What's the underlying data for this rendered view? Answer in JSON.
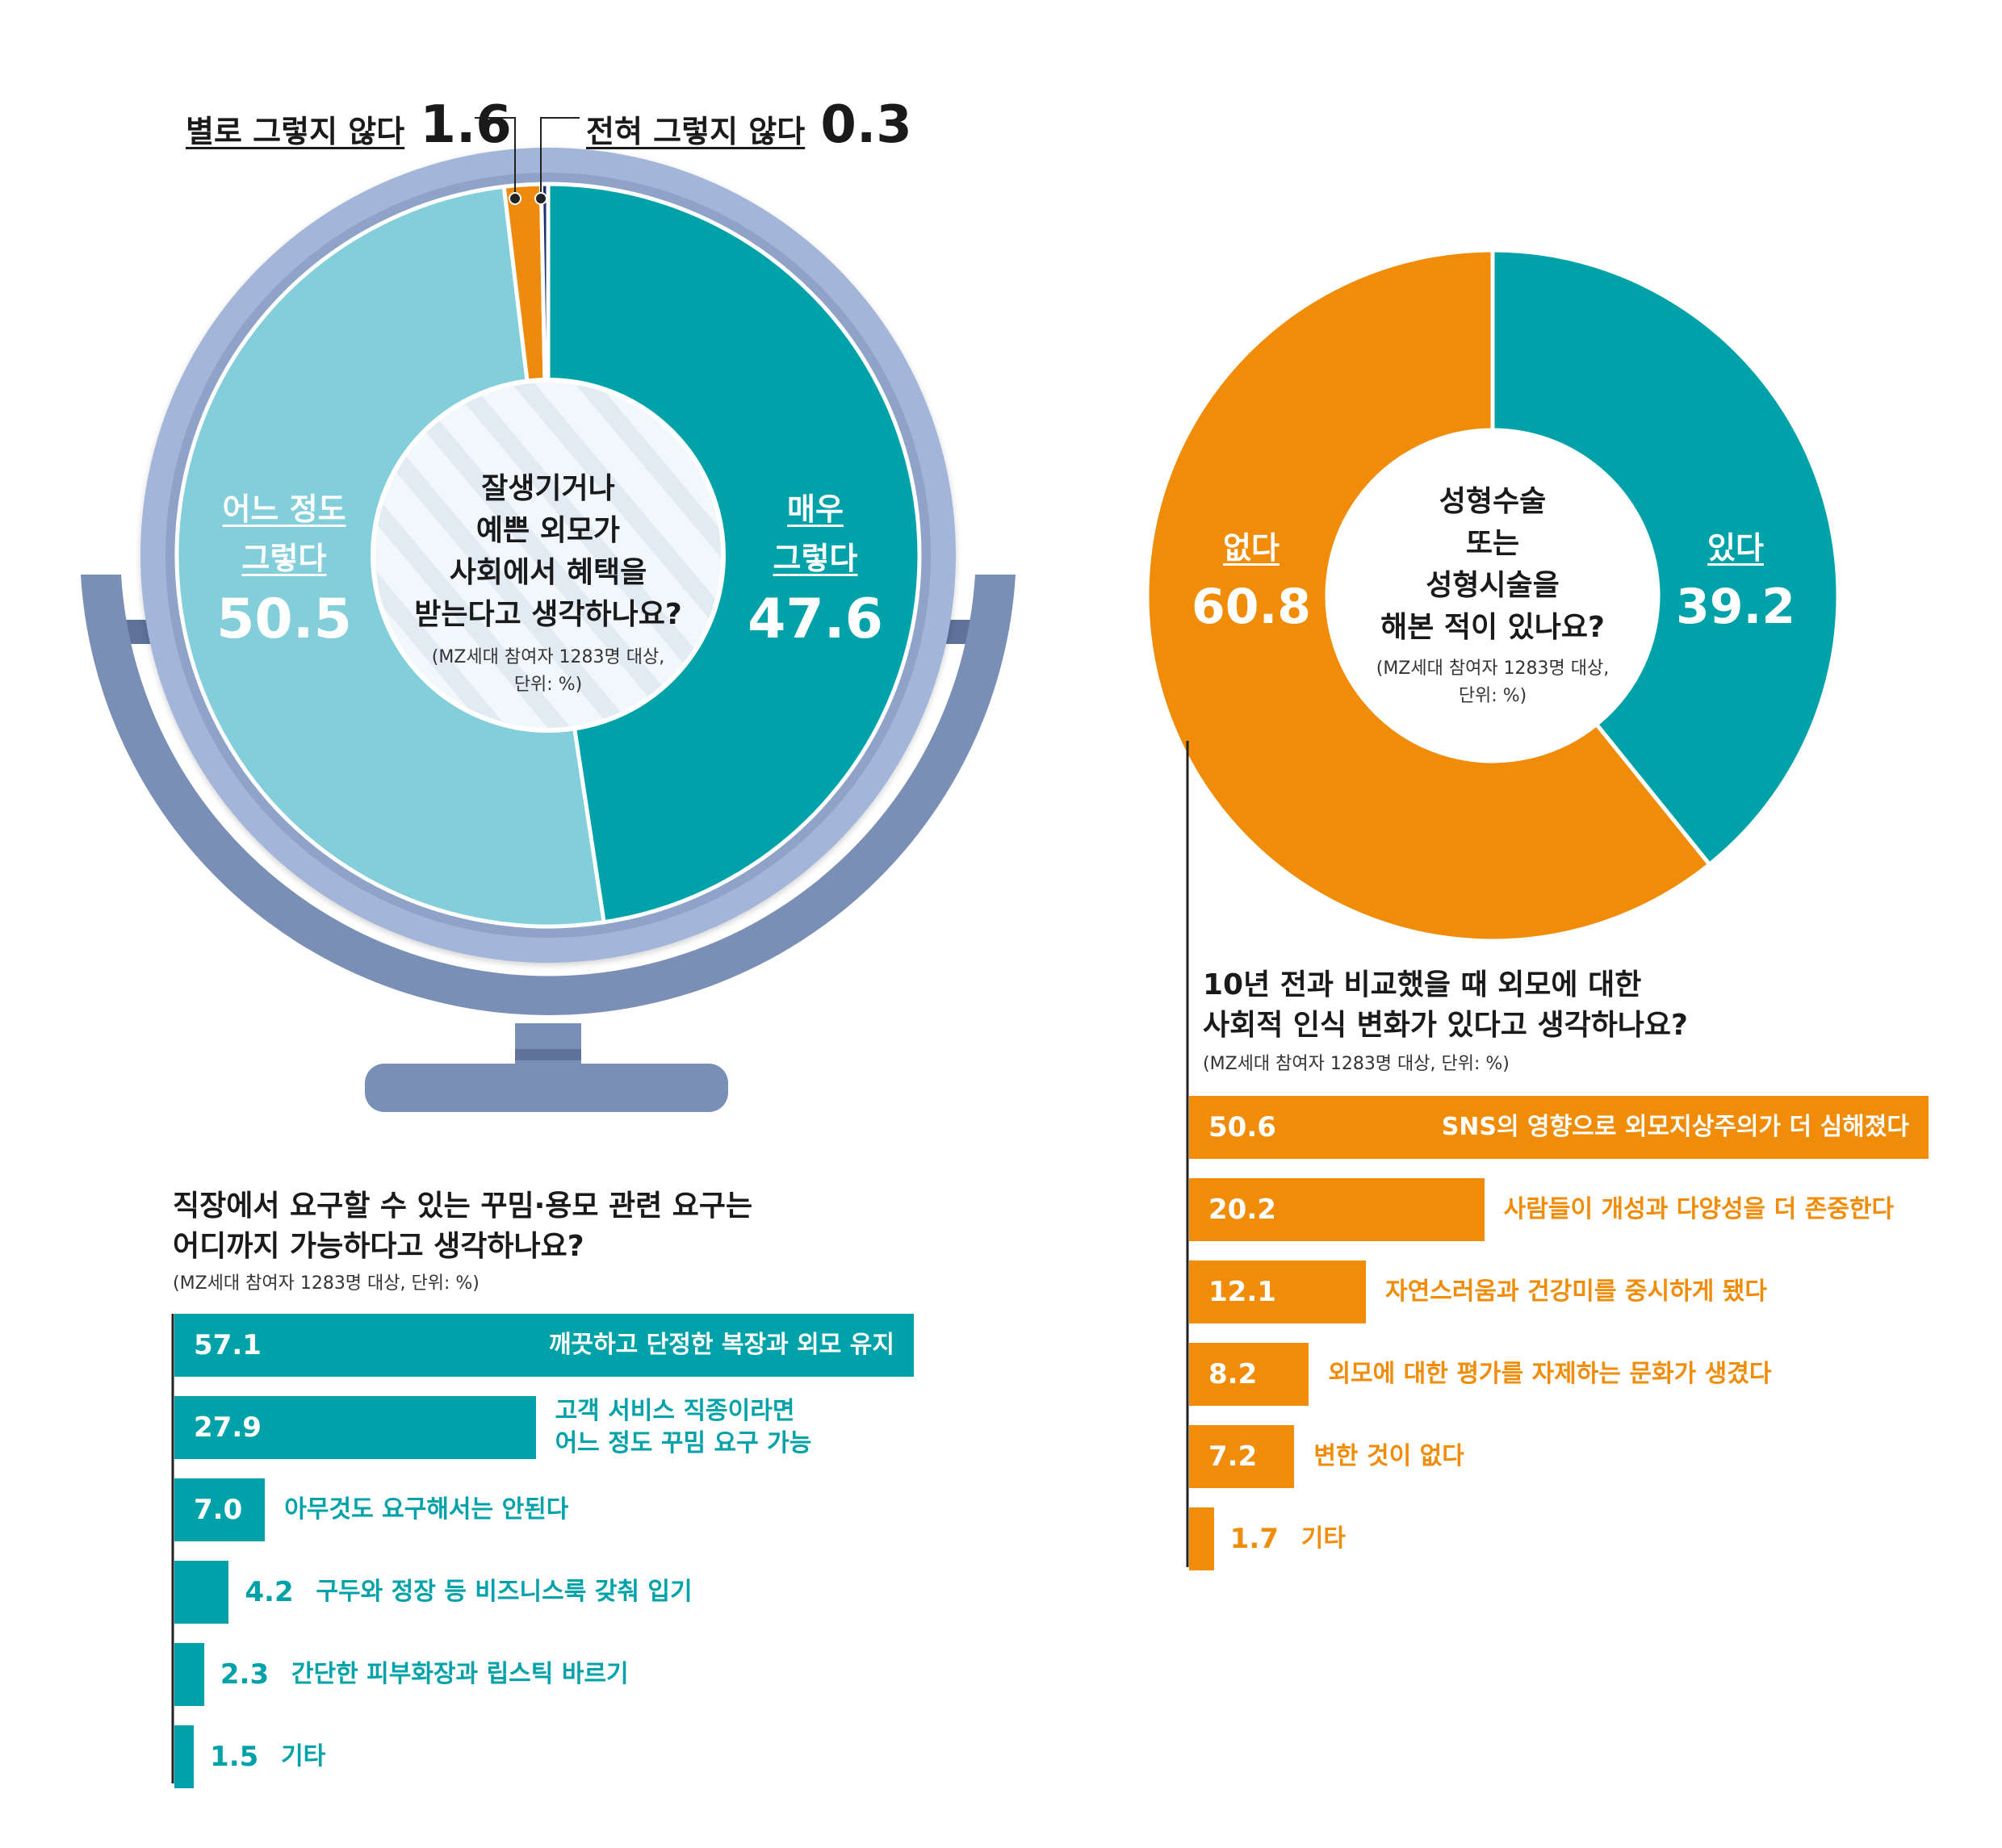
{
  "chart_data": [
    {
      "type": "pie",
      "variant": "donut",
      "title": "잘생기거나 예쁜 외모가 사회에서 혜택을 받는다고 생각하나요?",
      "note": "(MZ세대 참여자 1283명 대상, 단위: %)",
      "slices": [
        {
          "label": "매우 그렇다",
          "value": 47.6,
          "value_text": "47.6",
          "color": "#00a2aa"
        },
        {
          "label": "어느 정도 그렇다",
          "value": 50.5,
          "value_text": "50.5",
          "color": "#82cedb"
        },
        {
          "label": "별로 그렇지 않다",
          "value": 1.6,
          "value_text": "1.6",
          "color": "#ee8a0e"
        },
        {
          "label": "전혀 그렇지 않다",
          "value": 0.3,
          "value_text": "0.3",
          "color": "#1f2f6e"
        }
      ]
    },
    {
      "type": "pie",
      "variant": "donut",
      "title": "성형수술 또는 성형시술을 해본 적이 있나요?",
      "note": "(MZ세대 참여자 1283명 대상, 단위: %)",
      "slices": [
        {
          "label": "있다",
          "value": 39.2,
          "value_text": "39.2",
          "color": "#00a2aa"
        },
        {
          "label": "없다",
          "value": 60.8,
          "value_text": "60.8",
          "color": "#f08c08"
        }
      ]
    },
    {
      "type": "bar",
      "orientation": "horizontal",
      "title": "직장에서 요구할 수 있는 꾸밈·용모 관련 요구는 어디까지 가능하다고 생각하나요?",
      "note": "(MZ세대 참여자 1283명 대상, 단위: %)",
      "color": "#00a2aa",
      "categories": [
        "깨끗하고 단정한 복장과 외모 유지",
        "고객 서비스 직종이라면 어느 정도 꾸밈 요구 가능",
        "아무것도 요구해서는 안된다",
        "구두와 정장 등 비즈니스룩 갖춰 입기",
        "간단한 피부화장과 립스틱 바르기",
        "기타"
      ],
      "values": [
        57.1,
        27.9,
        7.0,
        4.2,
        2.3,
        1.5
      ],
      "value_texts": [
        "57.1",
        "27.9",
        "7.0",
        "4.2",
        "2.3",
        "1.5"
      ]
    },
    {
      "type": "bar",
      "orientation": "horizontal",
      "title": "10년 전과 비교했을 때 외모에 대한 사회적 인식 변화가 있다고 생각하나요?",
      "note": "(MZ세대 참여자 1283명 대상, 단위: %)",
      "color": "#f08c08",
      "categories": [
        "SNS의 영향으로 외모지상주의가 더 심해졌다",
        "사람들이 개성과 다양성을 더 존중한다",
        "자연스러움과 건강미를 중시하게 됐다",
        "외모에 대한 평가를 자제하는 문화가 생겼다",
        "변한 것이 없다",
        "기타"
      ],
      "values": [
        50.6,
        20.2,
        12.1,
        8.2,
        7.2,
        1.7
      ],
      "value_texts": [
        "50.6",
        "20.2",
        "12.1",
        "8.2",
        "7.2",
        "1.7"
      ]
    }
  ],
  "labels": {
    "donut1": {
      "very_yes": [
        "매우",
        "그렇다"
      ],
      "somewhat_yes": [
        "어느 정도",
        "그렇다"
      ],
      "not_much": "별로 그렇지 않다",
      "not_at_all": "전혀 그렇지 않다",
      "center": [
        "잘생기거나",
        "예쁜 외모가",
        "사회에서 혜택을",
        "받는다고 생각하나요?"
      ],
      "center_note": [
        "(MZ세대 참여자 1283명 대상,",
        "단위: %)"
      ]
    },
    "donut2": {
      "yes": "있다",
      "no": "없다",
      "center": [
        "성형수술",
        "또는",
        "성형시술을",
        "해본 적이 있나요?"
      ],
      "center_note": [
        "(MZ세대 참여자 1283명 대상,",
        "단위: %)"
      ]
    },
    "bars1": {
      "title": [
        "직장에서 요구할 수 있는 꾸밈·용모 관련 요구는",
        "어디까지 가능하다고 생각하나요?"
      ],
      "label_lines": [
        [
          "깨끗하고 단정한 복장과 외모 유지"
        ],
        [
          "고객 서비스 직종이라면",
          "어느 정도 꾸밈 요구 가능"
        ],
        [
          "아무것도 요구해서는 안된다"
        ],
        [
          "구두와 정장 등 비즈니스룩 갖춰 입기"
        ],
        [
          "간단한 피부화장과 립스틱 바르기"
        ],
        [
          "기타"
        ]
      ]
    },
    "bars2": {
      "title": [
        "10년 전과 비교했을 때 외모에 대한",
        "사회적 인식 변화가 있다고 생각하나요?"
      ]
    }
  },
  "colors": {
    "mirror_frame": "#a3b5d8",
    "mirror_stand": "#7a8fb6",
    "mirror_stand_dark": "#5e729a",
    "teal": "#00a2aa",
    "light_teal": "#82cedb",
    "orange": "#f08c08",
    "navy": "#1f2f6e"
  }
}
